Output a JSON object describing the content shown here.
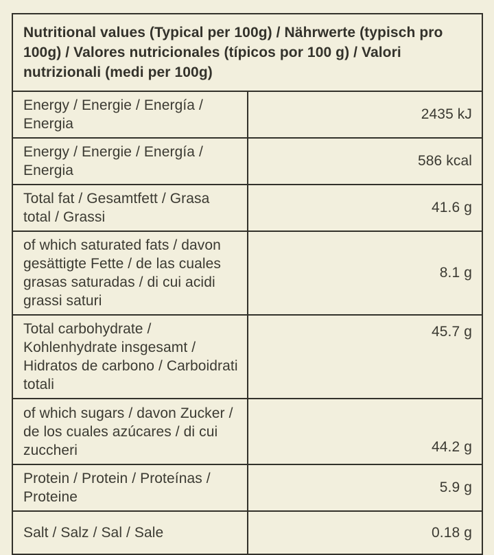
{
  "header": {
    "title": "Nutritional values (Typical per 100g) / Nährwerte (typisch pro 100g) / Valores nutricionales (típicos por 100 g) / Valori nutrizionali (medi per 100g)"
  },
  "table": {
    "rows": [
      {
        "label": "Energy / Energie / Energía / Energia",
        "value": "2435 kJ"
      },
      {
        "label": "Energy / Energie / Energía / Energia",
        "value": "586 kcal"
      },
      {
        "label": "Total fat / Gesamtfett / Grasa total / Grassi",
        "value": "41.6 g"
      },
      {
        "label": "of which saturated fats /  davon gesättigte Fette / de las cuales grasas saturadas / di cui acidi grassi saturi",
        "value": "8.1 g"
      },
      {
        "label": "Total carbohydrate / Kohlenhydrate insgesamt / Hidratos de carbono / Carboidrati totali",
        "value": "45.7 g"
      },
      {
        "label": "of which sugars / davon Zucker / de los cuales azúcares / di cui zuccheri",
        "value": "44.2 g"
      },
      {
        "label": "Protein / Protein / Proteínas / Proteine",
        "value": "5.9 g"
      },
      {
        "label": "Salt / Salz / Sal / Sale",
        "value": "0.18 g"
      }
    ]
  },
  "colors": {
    "background": "#f2efdd",
    "border": "#32312a",
    "text": "#3b3a32"
  }
}
